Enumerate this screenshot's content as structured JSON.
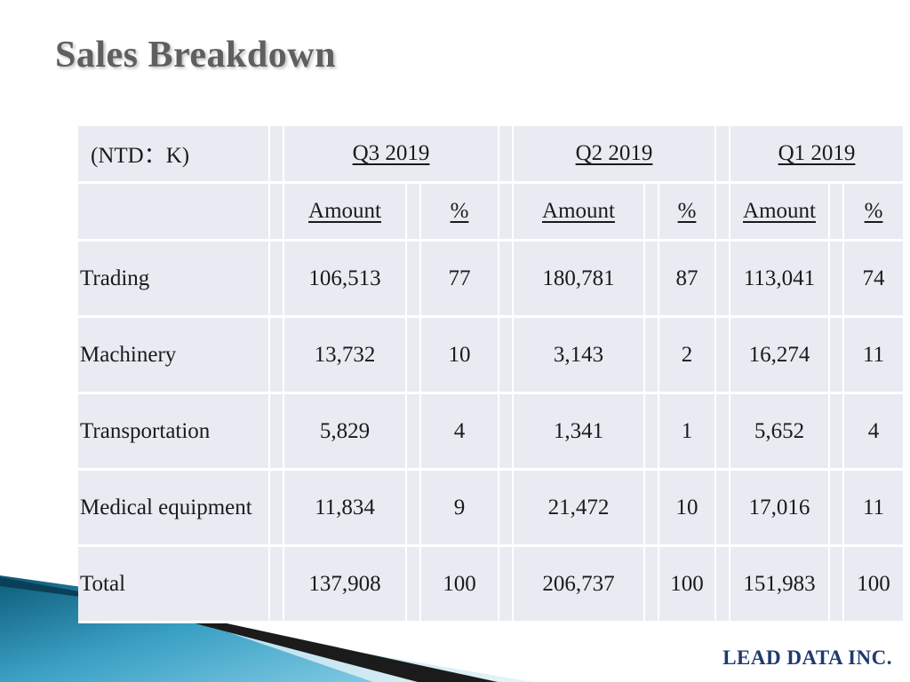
{
  "title": "Sales Breakdown",
  "table": {
    "corner_label": "(NTD：K)",
    "quarters": [
      "Q3 2019",
      "Q2 2019",
      "Q1 2019"
    ],
    "amount_label": "Amount",
    "pct_label": "%",
    "rows": [
      {
        "label": "Trading",
        "cells": [
          "106,513",
          "77",
          "180,781",
          "87",
          "113,041",
          "74"
        ]
      },
      {
        "label": "Machinery",
        "cells": [
          "13,732",
          "10",
          "3,143",
          "2",
          "16,274",
          "11"
        ]
      },
      {
        "label": "Transportation",
        "cells": [
          "5,829",
          "4",
          "1,341",
          "1",
          "5,652",
          "4"
        ]
      },
      {
        "label": "Medical equipment",
        "cells": [
          "11,834",
          "9",
          "21,472",
          "10",
          "17,016",
          "11"
        ]
      },
      {
        "label": "Total",
        "cells": [
          "137,908",
          "100",
          "206,737",
          "100",
          "151,983",
          "100"
        ]
      }
    ]
  },
  "brand": "LEAD DATA INC.",
  "colors": {
    "cell_bg": "#e8ebf2",
    "title": "#5f5f5f",
    "brand": "#1f3a6e",
    "accent_teal": "#1b6f8c"
  }
}
